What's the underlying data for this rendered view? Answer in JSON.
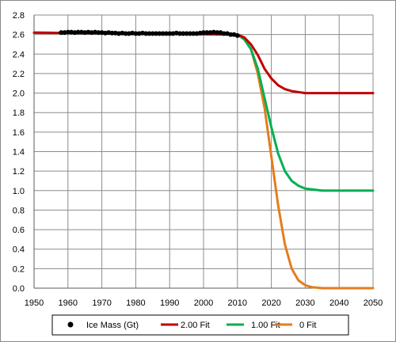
{
  "chart_data": {
    "type": "line",
    "title": "",
    "xlabel": "",
    "ylabel": "",
    "xlim": [
      1950,
      2050
    ],
    "ylim": [
      0.0,
      2.8
    ],
    "x_ticks": [
      1950,
      1960,
      1970,
      1980,
      1990,
      2000,
      2010,
      2020,
      2030,
      2040,
      2050
    ],
    "y_ticks": [
      0.0,
      0.2,
      0.4,
      0.6,
      0.8,
      1.0,
      1.2,
      1.4,
      1.6,
      1.8,
      2.0,
      2.2,
      2.4,
      2.6,
      2.8
    ],
    "grid": true,
    "legend_position": "bottom",
    "series": [
      {
        "name": "Ice Mass (Gt)",
        "kind": "scatter",
        "color": "#000000",
        "x": [
          1958,
          1959,
          1960,
          1961,
          1962,
          1963,
          1964,
          1965,
          1966,
          1967,
          1968,
          1969,
          1970,
          1971,
          1972,
          1973,
          1974,
          1975,
          1976,
          1977,
          1978,
          1979,
          1980,
          1981,
          1982,
          1983,
          1984,
          1985,
          1986,
          1987,
          1988,
          1989,
          1990,
          1991,
          1992,
          1993,
          1994,
          1995,
          1996,
          1997,
          1998,
          1999,
          2000,
          2001,
          2002,
          2003,
          2004,
          2005,
          2006,
          2007,
          2008,
          2009,
          2010
        ],
        "y": [
          2.62,
          2.62,
          2.625,
          2.625,
          2.62,
          2.625,
          2.625,
          2.62,
          2.625,
          2.62,
          2.625,
          2.62,
          2.62,
          2.615,
          2.62,
          2.615,
          2.615,
          2.61,
          2.615,
          2.61,
          2.61,
          2.615,
          2.61,
          2.61,
          2.615,
          2.61,
          2.61,
          2.61,
          2.61,
          2.61,
          2.61,
          2.61,
          2.61,
          2.61,
          2.615,
          2.61,
          2.61,
          2.61,
          2.61,
          2.61,
          2.61,
          2.615,
          2.62,
          2.62,
          2.62,
          2.625,
          2.62,
          2.62,
          2.61,
          2.61,
          2.6,
          2.6,
          2.59
        ]
      },
      {
        "name": "2.00 Fit",
        "kind": "line",
        "color": "#c00000",
        "x": [
          1950,
          2010,
          2012,
          2014,
          2016,
          2018,
          2020,
          2022,
          2024,
          2026,
          2028,
          2030,
          2035,
          2040,
          2050
        ],
        "y": [
          2.62,
          2.6,
          2.57,
          2.5,
          2.39,
          2.25,
          2.15,
          2.08,
          2.04,
          2.02,
          2.01,
          2.0,
          2.0,
          2.0,
          2.0
        ]
      },
      {
        "name": "1.00 Fit",
        "kind": "line",
        "color": "#00b050",
        "x": [
          1950,
          2010,
          2012,
          2014,
          2016,
          2018,
          2020,
          2022,
          2024,
          2026,
          2028,
          2030,
          2035,
          2040,
          2050
        ],
        "y": [
          2.62,
          2.6,
          2.55,
          2.45,
          2.25,
          1.95,
          1.65,
          1.38,
          1.2,
          1.1,
          1.05,
          1.02,
          1.0,
          1.0,
          1.0
        ]
      },
      {
        "name": "0 Fit",
        "kind": "line",
        "color": "#e67c1b",
        "x": [
          1950,
          2010,
          2012,
          2014,
          2016,
          2018,
          2020,
          2022,
          2024,
          2026,
          2028,
          2030,
          2032,
          2035,
          2040,
          2050
        ],
        "y": [
          2.62,
          2.6,
          2.56,
          2.45,
          2.2,
          1.85,
          1.35,
          0.85,
          0.45,
          0.2,
          0.08,
          0.03,
          0.01,
          0.0,
          0.0,
          0.0
        ]
      }
    ]
  }
}
